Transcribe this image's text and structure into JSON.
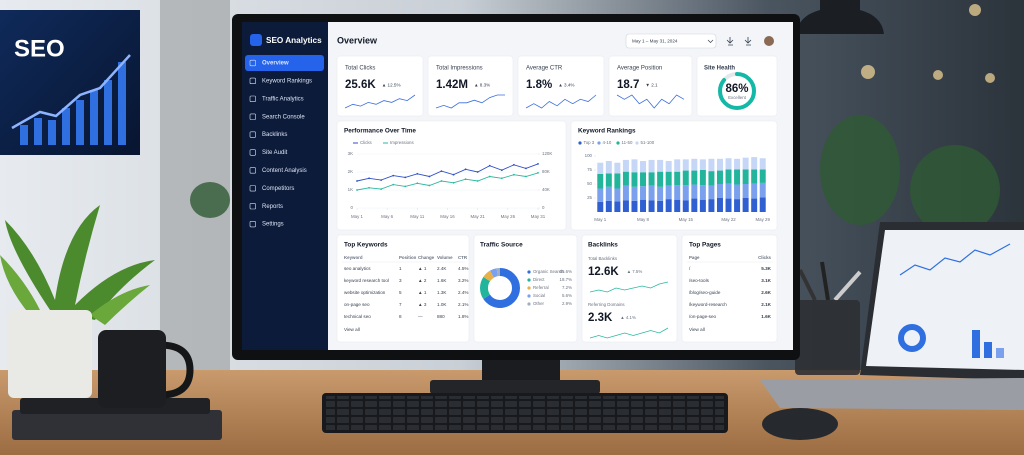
{
  "poster": {
    "title": "SEO"
  },
  "sidebar": {
    "brand": "SEO Analytics",
    "menu": [
      "Overview",
      "Keyword Rankings",
      "Traffic Analytics",
      "Search Console",
      "Backlinks",
      "Site Audit",
      "Content Analysis",
      "Competitors",
      "Reports",
      "Settings"
    ],
    "active": 0
  },
  "header": {
    "title": "Overview",
    "date_range": "May 1 – May 31, 2024"
  },
  "kpis": [
    {
      "label": "Total Clicks",
      "value": "25.6K",
      "change": "▲ 12.5%",
      "trend": "up",
      "spark": [
        5,
        7,
        6,
        8,
        7,
        9,
        8,
        10,
        9,
        12
      ]
    },
    {
      "label": "Total Impressions",
      "value": "1.42M",
      "change": "▲ 8.3%",
      "trend": "up",
      "spark": [
        6,
        7,
        6,
        8,
        8,
        9,
        8,
        10,
        11,
        11
      ]
    },
    {
      "label": "Average CTR",
      "value": "1.8%",
      "change": "▲ 3.4%",
      "trend": "up",
      "spark": [
        5,
        7,
        5,
        8,
        6,
        9,
        7,
        9,
        8,
        11
      ]
    },
    {
      "label": "Average Position",
      "value": "18.7",
      "change": "▼ 2.1",
      "trend": "down",
      "spark": [
        9,
        8,
        9,
        7,
        8,
        6,
        8,
        7,
        9,
        8
      ]
    }
  ],
  "health": {
    "label": "Site Health",
    "score": {
      "value": 86,
      "label": "86%"
    },
    "rating": "Excellent",
    "color": "#14b8a6"
  },
  "performance": {
    "title": "Performance Over Time",
    "x": [
      1,
      3,
      5,
      7,
      9,
      11,
      13,
      15,
      17,
      19,
      21,
      23,
      25,
      27,
      29,
      31
    ],
    "xlim": [
      1,
      31
    ],
    "xticks": [
      {
        "value": 1,
        "label": "May 1"
      },
      {
        "value": 6,
        "label": "May 6"
      },
      {
        "value": 11,
        "label": "May 11"
      },
      {
        "value": 16,
        "label": "May 16"
      },
      {
        "value": 21,
        "label": "May 21"
      },
      {
        "value": 26,
        "label": "May 26"
      },
      {
        "value": 31,
        "label": "May 31"
      }
    ],
    "ylim": [
      0,
      3000
    ],
    "yticks": [
      0,
      {
        "value": 1000,
        "label": "1K"
      },
      {
        "value": 2000,
        "label": "2K"
      },
      {
        "value": 3000,
        "label": "3K"
      }
    ],
    "y2lim": [
      0,
      120000
    ],
    "y2ticks": [
      0,
      {
        "value": 40000,
        "label": "40K"
      },
      {
        "value": 80000,
        "label": "80K"
      },
      {
        "value": 120000,
        "label": "120K"
      }
    ],
    "series": [
      {
        "name": "Clicks",
        "color": "#2f4fc7",
        "values": [
          1500,
          1650,
          1550,
          1800,
          1700,
          1900,
          1750,
          2050,
          1850,
          2150,
          2000,
          2350,
          2100,
          2400,
          2200,
          2450
        ]
      },
      {
        "name": "Impressions",
        "color": "#2bb8a0",
        "axis": "y2",
        "values": [
          40000,
          45000,
          42000,
          52000,
          48000,
          55000,
          50000,
          60000,
          56000,
          64000,
          60000,
          70000,
          66000,
          74000,
          70000,
          78000
        ]
      }
    ]
  },
  "rankings": {
    "title": "Keyword Rankings",
    "categories": [
      "May 1",
      null,
      null,
      null,
      null,
      "May 8",
      null,
      null,
      null,
      null,
      "May 15",
      null,
      null,
      null,
      null,
      "May 22",
      null,
      null,
      null,
      "May 29"
    ],
    "ylim": [
      0,
      100
    ],
    "yticks": [
      25,
      50,
      75,
      100
    ],
    "series": [
      {
        "name": "Top 3",
        "color": "#2f5fd0",
        "values": [
          18,
          20,
          19,
          21,
          20,
          22,
          21,
          20,
          23,
          22,
          21,
          24,
          22,
          23,
          25,
          24,
          23,
          25,
          24,
          26
        ]
      },
      {
        "name": "4-10",
        "color": "#7aa0ee",
        "values": [
          24,
          25,
          23,
          26,
          25,
          24,
          26,
          25,
          24,
          26,
          27,
          25,
          26,
          24,
          25,
          27,
          26,
          25,
          27,
          26
        ]
      },
      {
        "name": "11-50",
        "color": "#22b59b",
        "values": [
          26,
          24,
          27,
          25,
          26,
          25,
          24,
          27,
          25,
          24,
          26,
          25,
          27,
          26,
          24,
          25,
          27,
          26,
          25,
          24
        ]
      },
      {
        "name": "51-100",
        "color": "#c5d6f7",
        "values": [
          20,
          22,
          19,
          21,
          23,
          20,
          22,
          21,
          19,
          22,
          20,
          21,
          19,
          22,
          21,
          20,
          19,
          21,
          22,
          20
        ]
      }
    ]
  },
  "top_keywords": {
    "title": "Top Keywords",
    "columns": [
      "Keyword",
      "Position",
      "Change",
      "Volume",
      "CTR"
    ],
    "rows": [
      [
        "seo analytics",
        "1",
        "▲ 1",
        "2.4K",
        "4.5%"
      ],
      [
        "keyword research tool",
        "3",
        "▲ 2",
        "1.6K",
        "3.2%"
      ],
      [
        "website optimization",
        "5",
        "▲ 1",
        "1.3K",
        "2.4%"
      ],
      [
        "on-page seo",
        "7",
        "▲ 3",
        "1.0K",
        "2.1%"
      ],
      [
        "technical seo",
        "8",
        "—",
        "880",
        "1.8%"
      ]
    ],
    "link": "View all"
  },
  "traffic_source": {
    "title": "Traffic Source",
    "names": [
      "Organic Search",
      "Direct",
      "Referral",
      "Social",
      "Other"
    ],
    "values": [
      65.6,
      18.7,
      7.2,
      5.6,
      2.9
    ],
    "value_labels": [
      "65.6%",
      "18.7%",
      "7.2%",
      "5.6%",
      "2.9%"
    ],
    "colors": [
      "#2f6fe0",
      "#22b59b",
      "#e8b04a",
      "#7aa0ee",
      "#a0aec0"
    ]
  },
  "backlinks": {
    "title": "Backlinks",
    "items": [
      {
        "label": "Total Backlinks",
        "value": "12.6K",
        "change": "▲ 7.5%",
        "spark": [
          5,
          6,
          5,
          7,
          6,
          7,
          8,
          7,
          9,
          10
        ]
      },
      {
        "label": "Referring Domains",
        "value": "2.3K",
        "change": "▲ 4.1%",
        "spark": [
          5,
          6,
          5,
          6,
          7,
          6,
          7,
          8,
          7,
          9
        ]
      }
    ]
  },
  "top_pages": {
    "title": "Top Pages",
    "columns": [
      "Page",
      "Clicks"
    ],
    "rows": [
      [
        "/",
        "5.3K"
      ],
      [
        "/seo-tools",
        "3.1K"
      ],
      [
        "/blog/seo-guide",
        "2.6K"
      ],
      [
        "/keyword-research",
        "2.1K"
      ],
      [
        "/on-page-seo",
        "1.6K"
      ]
    ],
    "link": "View all"
  }
}
